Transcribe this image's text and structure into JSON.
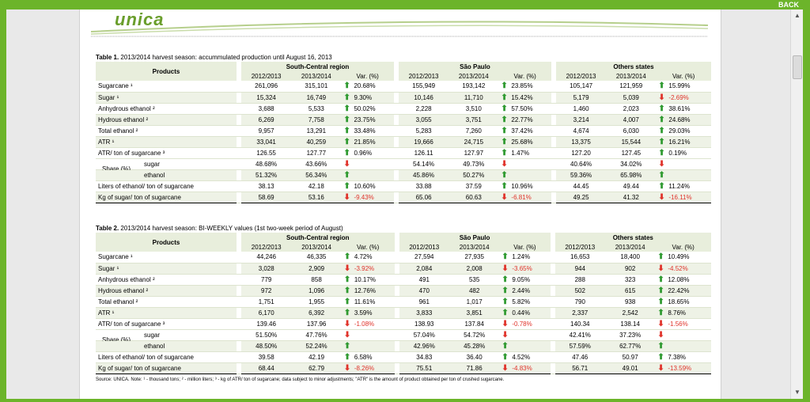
{
  "top_bar": {
    "back_label": "BACK"
  },
  "logo_text": "unica",
  "table1": {
    "title_bold": "Table 1.",
    "title_rest": " 2013/2014 harvest season: accummulated production until August 16, 2013",
    "products_header": "Products",
    "regions": [
      "South-Central region",
      "São Paulo",
      "Others states"
    ],
    "col_labels": [
      "2012/2013",
      "2013/2014",
      "Var. (%)"
    ],
    "rows": [
      {
        "label": "Sugarcane ¹",
        "v": [
          [
            "261,096",
            "315,101",
            "up",
            "20.68%"
          ],
          [
            "155,949",
            "193,142",
            "up",
            "23.85%"
          ],
          [
            "105,147",
            "121,959",
            "up",
            "15.99%"
          ]
        ]
      },
      {
        "label": "Sugar ¹",
        "v": [
          [
            "15,324",
            "16,749",
            "up",
            "9.30%"
          ],
          [
            "10,146",
            "11,710",
            "up",
            "15.42%"
          ],
          [
            "5,179",
            "5,039",
            "down",
            "-2.69%"
          ]
        ]
      },
      {
        "label": "Anhydrous ethanol ²",
        "v": [
          [
            "3,688",
            "5,533",
            "up",
            "50.02%"
          ],
          [
            "2,228",
            "3,510",
            "up",
            "57.50%"
          ],
          [
            "1,460",
            "2,023",
            "up",
            "38.61%"
          ]
        ]
      },
      {
        "label": "Hydrous ethanol ²",
        "v": [
          [
            "6,269",
            "7,758",
            "up",
            "23.75%"
          ],
          [
            "3,055",
            "3,751",
            "up",
            "22.77%"
          ],
          [
            "3,214",
            "4,007",
            "up",
            "24.68%"
          ]
        ]
      },
      {
        "label": "Total ethanol ²",
        "v": [
          [
            "9,957",
            "13,291",
            "up",
            "33.48%"
          ],
          [
            "5,283",
            "7,260",
            "up",
            "37.42%"
          ],
          [
            "4,674",
            "6,030",
            "up",
            "29.03%"
          ]
        ]
      },
      {
        "label": "ATR ¹",
        "v": [
          [
            "33,041",
            "40,259",
            "up",
            "21.85%"
          ],
          [
            "19,666",
            "24,715",
            "up",
            "25.68%"
          ],
          [
            "13,375",
            "15,544",
            "up",
            "16.21%"
          ]
        ]
      },
      {
        "label": "ATR/ ton of sugarcane ³",
        "v": [
          [
            "126.55",
            "127.77",
            "up",
            "0.96%"
          ],
          [
            "126.11",
            "127.97",
            "up",
            "1.47%"
          ],
          [
            "127.20",
            "127.45",
            "up",
            "0.19%"
          ]
        ]
      }
    ],
    "share": {
      "label": "Share (%)",
      "sugar_label": "sugar",
      "ethanol_label": "ethanol",
      "sugar": [
        [
          "48.68%",
          "43.66%",
          "down"
        ],
        [
          "54.14%",
          "49.73%",
          "down"
        ],
        [
          "40.64%",
          "34.02%",
          "down"
        ]
      ],
      "ethanol": [
        [
          "51.32%",
          "56.34%",
          "up"
        ],
        [
          "45.86%",
          "50.27%",
          "up"
        ],
        [
          "59.36%",
          "65.98%",
          "up"
        ]
      ]
    },
    "tail_rows": [
      {
        "label": "Liters of ethanol/ ton of sugarcane",
        "v": [
          [
            "38.13",
            "42.18",
            "up",
            "10.60%"
          ],
          [
            "33.88",
            "37.59",
            "up",
            "10.96%"
          ],
          [
            "44.45",
            "49.44",
            "up",
            "11.24%"
          ]
        ]
      },
      {
        "label": "Kg of sugar/ ton of sugarcane",
        "v": [
          [
            "58.69",
            "53.16",
            "down",
            "-9.43%"
          ],
          [
            "65.06",
            "60.63",
            "down",
            "-6.81%"
          ],
          [
            "49.25",
            "41.32",
            "down",
            "-16.11%"
          ]
        ]
      }
    ]
  },
  "table2": {
    "title_bold": "Table 2.",
    "title_rest": " 2013/2014 harvest season: BI-WEEKLY values (1st two-week period of August)",
    "products_header": "Products",
    "regions": [
      "South-Central region",
      "São Paulo",
      "Others states"
    ],
    "col_labels": [
      "2012/2013",
      "2013/2014",
      "Var. (%)"
    ],
    "rows": [
      {
        "label": "Sugarcane ¹",
        "v": [
          [
            "44,246",
            "46,335",
            "up",
            "4.72%"
          ],
          [
            "27,594",
            "27,935",
            "up",
            "1.24%"
          ],
          [
            "16,653",
            "18,400",
            "up",
            "10.49%"
          ]
        ]
      },
      {
        "label": "Sugar ¹",
        "v": [
          [
            "3,028",
            "2,909",
            "down",
            "-3.92%"
          ],
          [
            "2,084",
            "2,008",
            "down",
            "-3.65%"
          ],
          [
            "944",
            "902",
            "down",
            "-4.52%"
          ]
        ]
      },
      {
        "label": "Anhydrous ethanol ²",
        "v": [
          [
            "779",
            "858",
            "up",
            "10.17%"
          ],
          [
            "491",
            "535",
            "up",
            "9.05%"
          ],
          [
            "288",
            "323",
            "up",
            "12.08%"
          ]
        ]
      },
      {
        "label": "Hydrous ethanol ²",
        "v": [
          [
            "972",
            "1,096",
            "up",
            "12.76%"
          ],
          [
            "470",
            "482",
            "up",
            "2.44%"
          ],
          [
            "502",
            "615",
            "up",
            "22.42%"
          ]
        ]
      },
      {
        "label": "Total ethanol ²",
        "v": [
          [
            "1,751",
            "1,955",
            "up",
            "11.61%"
          ],
          [
            "961",
            "1,017",
            "up",
            "5.82%"
          ],
          [
            "790",
            "938",
            "up",
            "18.65%"
          ]
        ]
      },
      {
        "label": "ATR ¹",
        "v": [
          [
            "6,170",
            "6,392",
            "up",
            "3.59%"
          ],
          [
            "3,833",
            "3,851",
            "up",
            "0.44%"
          ],
          [
            "2,337",
            "2,542",
            "up",
            "8.76%"
          ]
        ]
      },
      {
        "label": "ATR/ ton of sugarcane ³",
        "v": [
          [
            "139.46",
            "137.96",
            "down",
            "-1.08%"
          ],
          [
            "138.93",
            "137.84",
            "down",
            "-0.78%"
          ],
          [
            "140.34",
            "138.14",
            "down",
            "-1.56%"
          ]
        ]
      }
    ],
    "share": {
      "label": "Share (%)",
      "sugar_label": "sugar",
      "ethanol_label": "ethanol",
      "sugar": [
        [
          "51.50%",
          "47.76%",
          "down"
        ],
        [
          "57.04%",
          "54.72%",
          "down"
        ],
        [
          "42.41%",
          "37.23%",
          "down"
        ]
      ],
      "ethanol": [
        [
          "48.50%",
          "52.24%",
          "up"
        ],
        [
          "42.96%",
          "45.28%",
          "up"
        ],
        [
          "57.59%",
          "62.77%",
          "up"
        ]
      ]
    },
    "tail_rows": [
      {
        "label": "Liters of ethanol/ ton of sugarcane",
        "v": [
          [
            "39.58",
            "42.19",
            "up",
            "6.58%"
          ],
          [
            "34.83",
            "36.40",
            "up",
            "4.52%"
          ],
          [
            "47.46",
            "50.97",
            "up",
            "7.38%"
          ]
        ]
      },
      {
        "label": "Kg of sugar/ ton of sugarcane",
        "v": [
          [
            "68.44",
            "62.79",
            "down",
            "-8.26%"
          ],
          [
            "75.51",
            "71.86",
            "down",
            "-4.83%"
          ],
          [
            "56.71",
            "49.01",
            "down",
            "-13.59%"
          ]
        ]
      }
    ]
  },
  "source_note": "Source: UNICA. Note: ¹ - thousand tons; ² - million liters; ³ - kg of ATR/ ton of sugarcane; data subject to minor adjustments; \"ATR\" is the amount of product obtained per ton of crushed sugarcane."
}
